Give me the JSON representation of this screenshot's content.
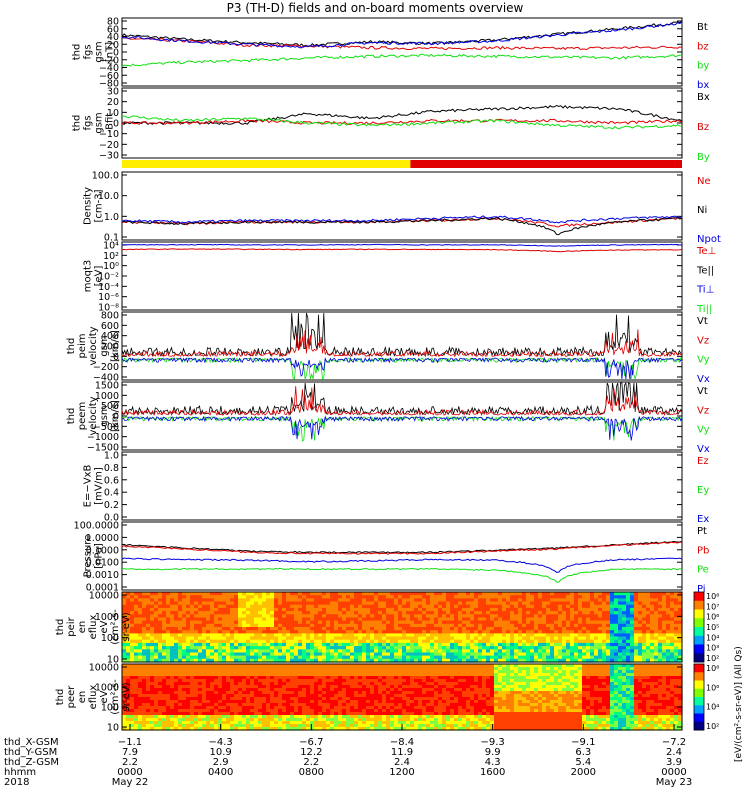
{
  "title": "P3 (TH-D) fields and on-board moments overview",
  "colors": {
    "black": "#000000",
    "red": "#e00000",
    "green": "#10e010",
    "blue": "#0000e0",
    "yellow": "#ffee00",
    "bar_red": "#e00000"
  },
  "chart_data": [
    {
      "type": "line",
      "ylabel": [
        "thd",
        "fgs",
        "gsm",
        "[nT]"
      ],
      "yticks": [
        "80",
        "60",
        "40",
        "20",
        "0",
        "−20",
        "−40",
        "−60",
        "−80"
      ],
      "ylim": [
        -80,
        80
      ],
      "legend": [
        {
          "name": "Bt",
          "color": "black"
        },
        {
          "name": "bz",
          "color": "red"
        },
        {
          "name": "by",
          "color": "green"
        },
        {
          "name": "bx",
          "color": "blue"
        }
      ],
      "series": [
        {
          "name": "Bt",
          "color": "black",
          "values": [
            40,
            30,
            22,
            16,
            24,
            20,
            28,
            42,
            55,
            70
          ]
        },
        {
          "name": "bz",
          "color": "red",
          "values": [
            32,
            26,
            16,
            14,
            10,
            8,
            10,
            8,
            10,
            12
          ]
        },
        {
          "name": "by",
          "color": "green",
          "values": [
            -32,
            -24,
            -20,
            -14,
            -10,
            -8,
            -10,
            -12,
            -14,
            -8
          ]
        },
        {
          "name": "bx",
          "color": "blue",
          "values": [
            36,
            26,
            18,
            12,
            22,
            20,
            26,
            40,
            52,
            68
          ]
        }
      ]
    },
    {
      "type": "line",
      "ylabel": [
        "thd",
        "fgs",
        "gsm",
        "-Bfit"
      ],
      "yticks": [
        "30",
        "20",
        "10",
        "0",
        "−10",
        "−20",
        "−30"
      ],
      "ylim": [
        -30,
        30
      ],
      "legend": [
        {
          "name": "Bx",
          "color": "black"
        },
        {
          "name": "Bz",
          "color": "red"
        },
        {
          "name": "By",
          "color": "green"
        }
      ],
      "series": [
        {
          "name": "Bx",
          "color": "black",
          "values": [
            0,
            0,
            0,
            8,
            4,
            10,
            12,
            14,
            12,
            2
          ]
        },
        {
          "name": "Bz",
          "color": "red",
          "values": [
            0,
            0,
            2,
            0,
            0,
            2,
            2,
            2,
            0,
            2
          ]
        },
        {
          "name": "By",
          "color": "green",
          "values": [
            6,
            2,
            4,
            0,
            -2,
            0,
            2,
            -2,
            -4,
            -2
          ]
        }
      ]
    },
    {
      "type": "area",
      "name": "mode bar",
      "segments": [
        {
          "from": 0,
          "to": 0.515,
          "color": "yellow"
        },
        {
          "from": 0.515,
          "to": 1,
          "color": "bar_red"
        }
      ]
    },
    {
      "type": "line",
      "ylabel": [
        "Density",
        "[cm-3]"
      ],
      "yticks": [
        "100.0",
        "10.0",
        "1.0",
        "0.1"
      ],
      "yscale": "log",
      "legend": [
        {
          "name": "Ne",
          "color": "red"
        },
        {
          "name": "Ni",
          "color": "black"
        },
        {
          "name": "Npot",
          "color": "blue"
        }
      ],
      "series": [
        {
          "name": "Ne",
          "values": [
            0.5,
            0.4,
            0.5,
            0.5,
            0.5,
            0.6,
            0.8,
            0.3,
            0.5,
            0.8
          ]
        },
        {
          "name": "Ni",
          "values": [
            0.5,
            0.4,
            0.5,
            0.5,
            0.5,
            0.6,
            0.8,
            0.1,
            0.5,
            0.8
          ]
        },
        {
          "name": "Npot",
          "values": [
            0.6,
            0.5,
            0.6,
            0.6,
            0.6,
            0.8,
            1.0,
            0.5,
            0.8,
            1.0
          ]
        }
      ]
    },
    {
      "type": "line",
      "ylabel": [
        "moqt3",
        "[eV]"
      ],
      "yticks": [
        "10⁴",
        "10²",
        "10⁰",
        "10⁻²",
        "10⁻⁴",
        "10⁻⁶",
        "10⁻⁸"
      ],
      "yscale": "log",
      "legend": [
        {
          "name": "Te⊥",
          "color": "red"
        },
        {
          "name": "Te||",
          "color": "black"
        },
        {
          "name": "Ti⊥",
          "color": "blue"
        },
        {
          "name": "Ti||",
          "color": "green"
        }
      ],
      "series": [
        {
          "name": "Te⊥",
          "values": [
            1000,
            1200,
            1100,
            1000,
            1100,
            1000,
            900,
            400,
            800,
            900
          ]
        },
        {
          "name": "Ti⊥",
          "values": [
            8000,
            9000,
            8000,
            8000,
            9000,
            8000,
            8000,
            5000,
            8000,
            9000
          ]
        }
      ]
    },
    {
      "type": "line",
      "ylabel": [
        "thd",
        "peim",
        "velocity",
        "gsm",
        "[km/s]"
      ],
      "yticks": [
        "800",
        "600",
        "400",
        "200",
        "0",
        "−200",
        "−400"
      ],
      "ylim": [
        -400,
        800
      ],
      "legend": [
        {
          "name": "Vt",
          "color": "black"
        },
        {
          "name": "Vz",
          "color": "red"
        },
        {
          "name": "Vy",
          "color": "green"
        },
        {
          "name": "Vx",
          "color": "blue"
        }
      ]
    },
    {
      "type": "line",
      "ylabel": [
        "thd",
        "peem",
        "velocity",
        "gsm",
        "[km/s]"
      ],
      "yticks": [
        "1500",
        "1000",
        "500",
        "0",
        "−500",
        "−1000",
        "−1500"
      ],
      "ylim": [
        -1500,
        1500
      ],
      "legend": [
        {
          "name": "Vt",
          "color": "black"
        },
        {
          "name": "Vz",
          "color": "red"
        },
        {
          "name": "Vy",
          "color": "green"
        },
        {
          "name": "Vx",
          "color": "blue"
        }
      ]
    },
    {
      "type": "line",
      "ylabel": [
        "E=−VxB",
        "[mV/m]"
      ],
      "yticks": [
        "1.0",
        "0.8",
        "0.6",
        "0.4",
        "0.2",
        "0.0"
      ],
      "ylim": [
        0,
        1
      ],
      "legend": [
        {
          "name": "Ez",
          "color": "red"
        },
        {
          "name": "Ey",
          "color": "green"
        },
        {
          "name": "Ex",
          "color": "blue"
        }
      ]
    },
    {
      "type": "line",
      "ylabel": [
        "Pressure",
        "[nPa]"
      ],
      "yticks": [
        "100.0000",
        "1.0000",
        "0.1000",
        "0.0100",
        "0.0010",
        "0.0001"
      ],
      "yscale": "log",
      "legend": [
        {
          "name": "Pt",
          "color": "black"
        },
        {
          "name": "Pb",
          "color": "red"
        },
        {
          "name": "Pe",
          "color": "green"
        },
        {
          "name": "Pi",
          "color": "blue"
        }
      ],
      "series": [
        {
          "name": "Pt",
          "values": [
            2,
            1,
            0.5,
            0.4,
            0.4,
            0.4,
            0.6,
            1,
            2,
            4
          ]
        },
        {
          "name": "Pb",
          "values": [
            1.5,
            0.8,
            0.4,
            0.3,
            0.3,
            0.3,
            0.5,
            0.8,
            1.8,
            3.5
          ]
        },
        {
          "name": "Pe",
          "values": [
            0.01,
            0.01,
            0.01,
            0.01,
            0.01,
            0.01,
            0.008,
            0.0005,
            0.01,
            0.01
          ]
        },
        {
          "name": "Pi",
          "values": [
            0.1,
            0.08,
            0.07,
            0.05,
            0.06,
            0.08,
            0.07,
            0.004,
            0.08,
            0.1
          ]
        }
      ]
    },
    {
      "type": "heatmap",
      "ylabel": [
        "thd",
        "peir",
        "en",
        "eflux",
        "eV",
        "(cm²-s-",
        "sr-eV)"
      ],
      "yticks": [
        "10000",
        "1000",
        "100",
        "10"
      ],
      "colorbar": {
        "ticks": [
          "10⁸",
          "10⁷",
          "10⁶",
          "10⁵",
          "10⁴",
          "10³",
          "10²"
        ]
      }
    },
    {
      "type": "heatmap",
      "ylabel": [
        "thd",
        "peer",
        "en",
        "eflux",
        "eV",
        "(cm²-s-",
        "sr-eV)"
      ],
      "yticks": [
        "10000",
        "1000",
        "100",
        "10"
      ],
      "colorbar": {
        "ticks": [
          "10⁸",
          "10⁶",
          "10⁴",
          "10²"
        ],
        "label": "[eV/(cm²-s-sr-eV)] (All Qs)"
      }
    }
  ],
  "xaxis": {
    "rows": [
      {
        "label": "thd_X-GSM",
        "values": [
          "−1.1",
          "−4.3",
          "−6.7",
          "−8.4",
          "−9.3",
          "−9.1",
          "−7.2"
        ]
      },
      {
        "label": "thd_Y-GSM",
        "values": [
          "7.9",
          "10.9",
          "12.2",
          "11.9",
          "9.9",
          "6.3",
          "2.4"
        ]
      },
      {
        "label": "thd_Z-GSM",
        "values": [
          "2.2",
          "2.9",
          "2.2",
          "2.4",
          "4.3",
          "5.4",
          "3.9"
        ]
      },
      {
        "label": "hhmm",
        "values": [
          "0000",
          "0400",
          "0800",
          "1200",
          "1600",
          "2000",
          "0000"
        ]
      }
    ],
    "year": "2018",
    "date_start": "May 22",
    "date_end": "May 23"
  }
}
